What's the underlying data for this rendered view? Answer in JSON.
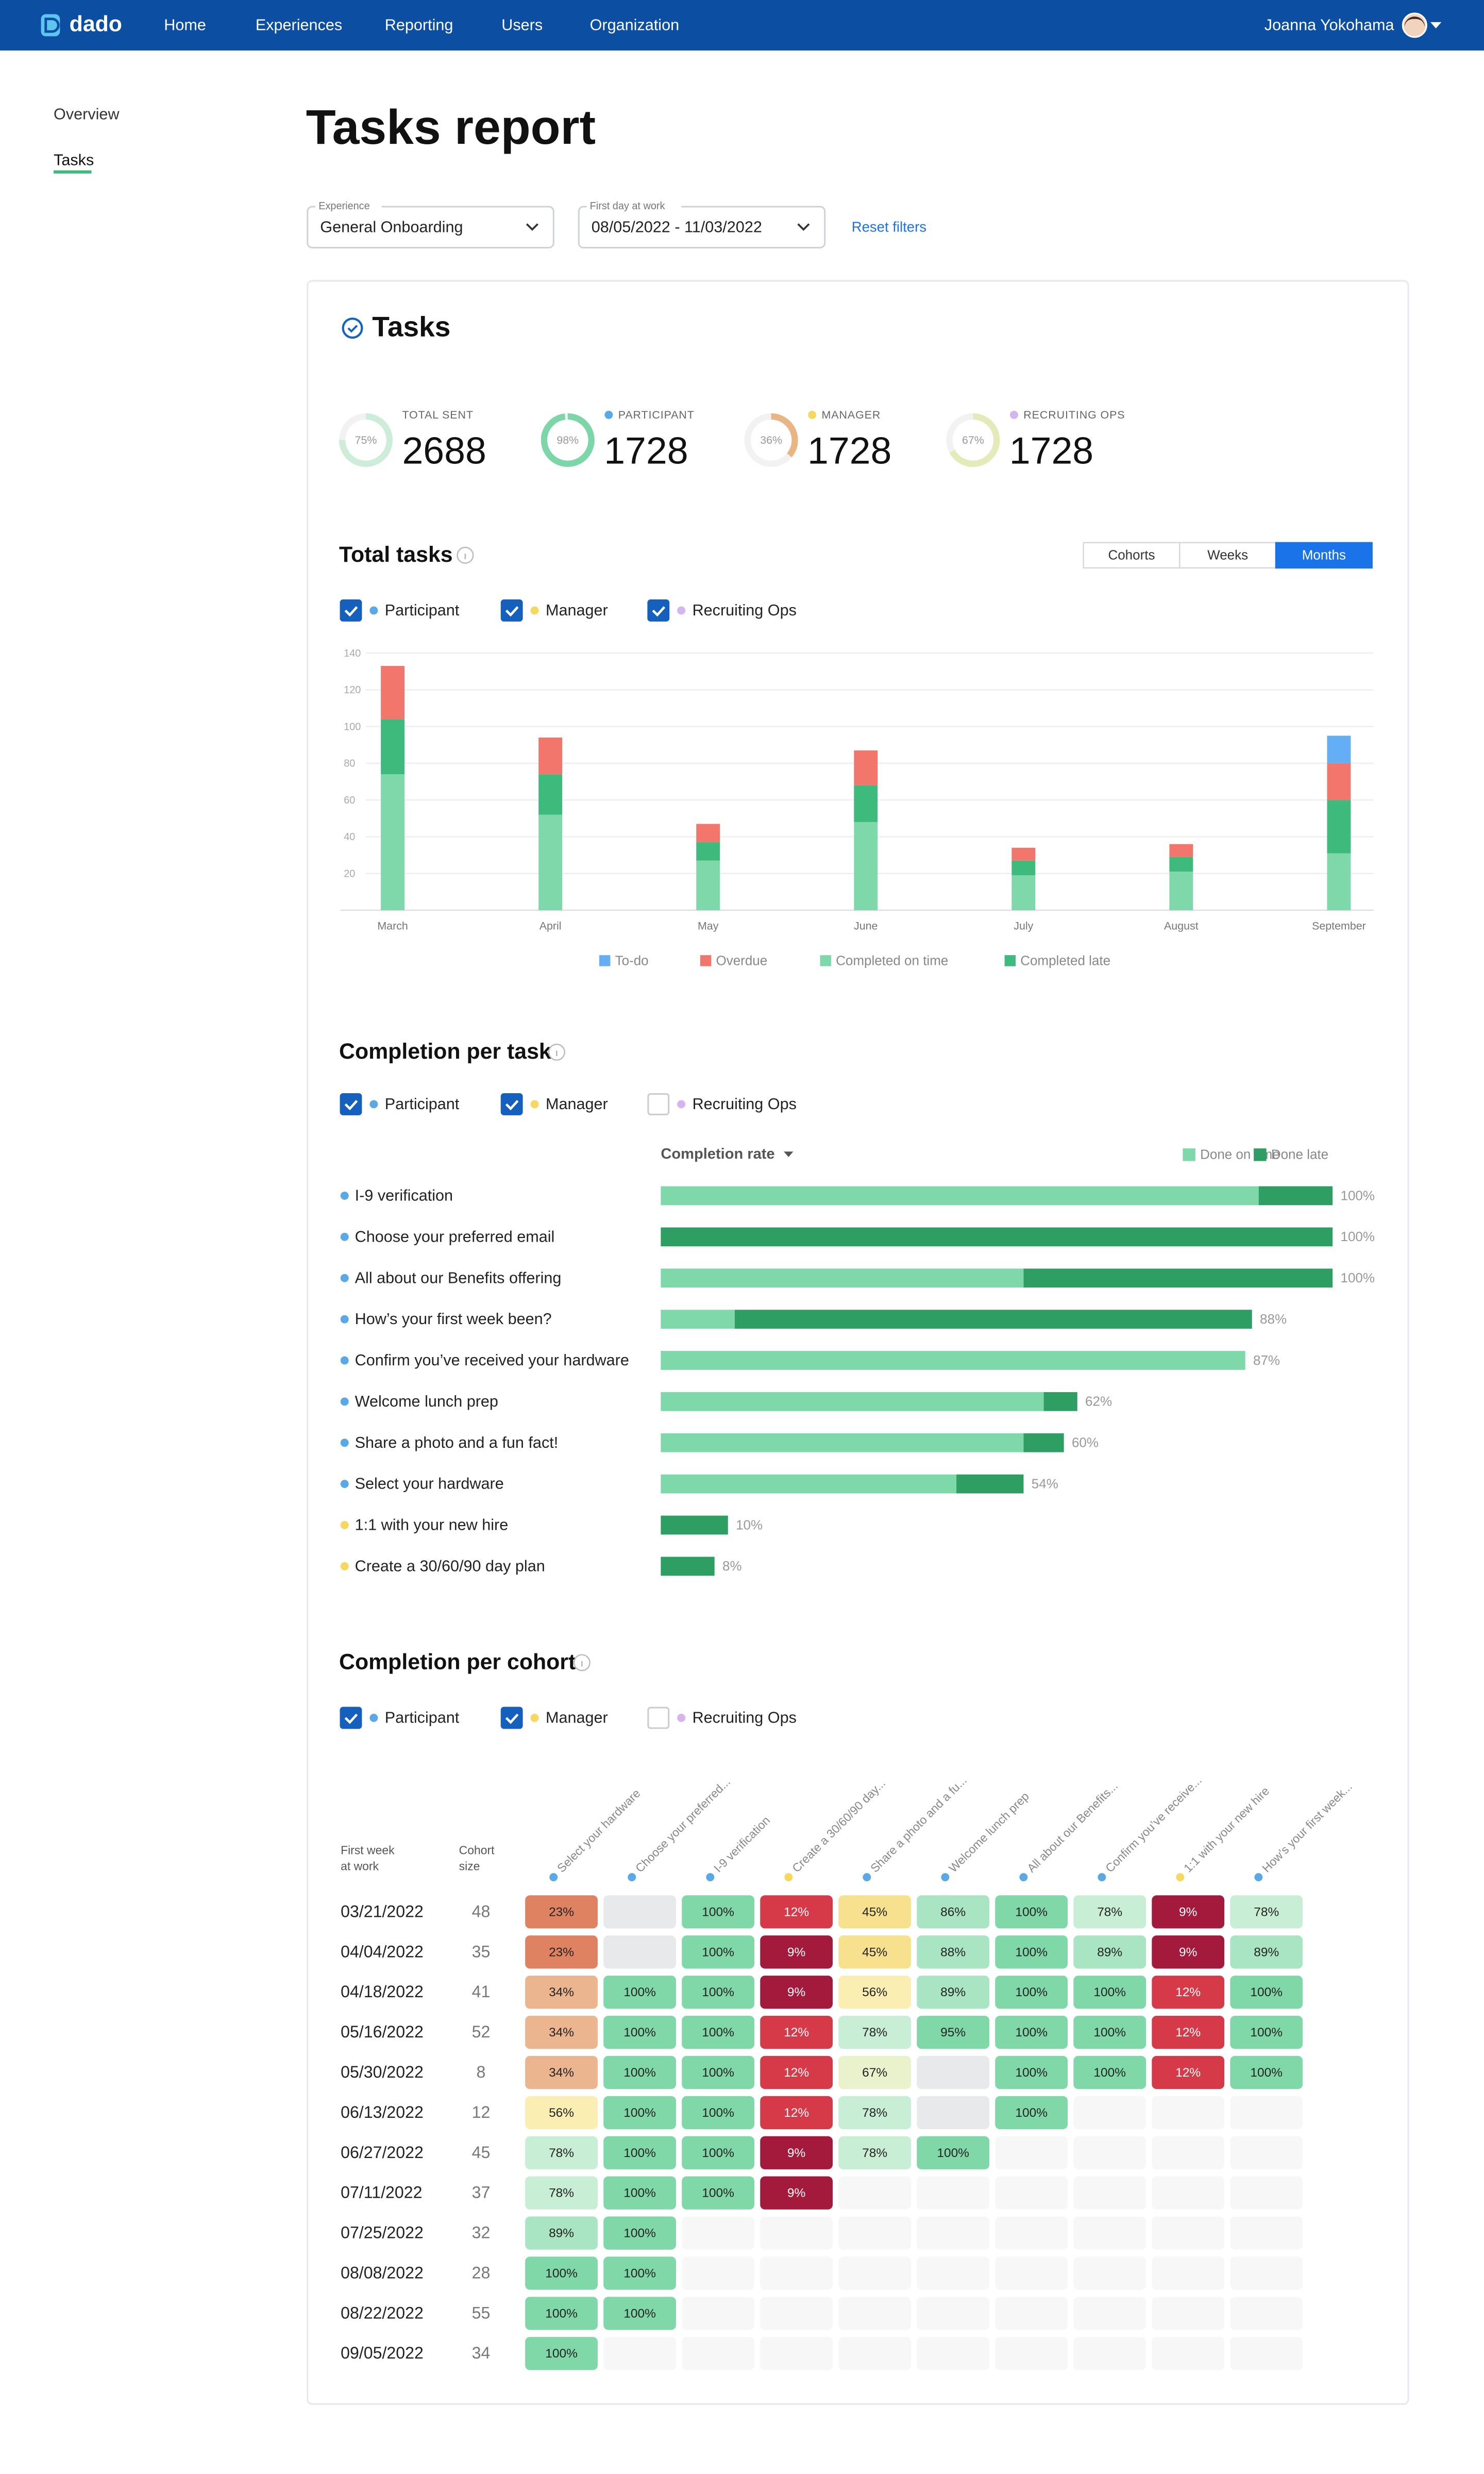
{
  "nav": {
    "logo": "dado",
    "items": [
      "Home",
      "Experiences",
      "Reporting",
      "Users",
      "Organization"
    ],
    "user": "Joanna Yokohama"
  },
  "sidebar": {
    "items": [
      "Overview",
      "Tasks"
    ],
    "active": 1
  },
  "header": {
    "title": "Tasks report"
  },
  "filters": [
    {
      "label": "Experience",
      "value": "General Onboarding"
    },
    {
      "label": "First day at work",
      "value": "08/05/2022 - 11/03/2022"
    }
  ],
  "reset": "Reset filters",
  "tasks_card": {
    "title": "Tasks",
    "kpis": [
      {
        "label": "TOTAL SENT",
        "value": 2688,
        "percent": 75,
        "percent_label": "75%",
        "ring_color": "#cdecd9",
        "dot": null
      },
      {
        "label": "PARTICIPANT",
        "value": 1728,
        "percent": 98,
        "percent_label": "98%",
        "ring_color": "#7dd6a8",
        "dot": "#5aa9e6"
      },
      {
        "label": "MANAGER",
        "value": 1728,
        "percent": 36,
        "percent_label": "36%",
        "ring_color": "#e8b585",
        "dot": "#f6d860"
      },
      {
        "label": "RECRUITING OPS",
        "value": 1728,
        "percent": 67,
        "percent_label": "67%",
        "ring_color": "#e4ebb8",
        "dot": "#d6b4f0"
      }
    ]
  },
  "total_tasks": {
    "title": "Total tasks",
    "views": [
      "Cohorts",
      "Weeks",
      "Months"
    ],
    "active_view": 2,
    "filters": [
      {
        "name": "Participant",
        "color": "#5aa9e6",
        "checked": true
      },
      {
        "name": "Manager",
        "color": "#f6d860",
        "checked": true
      },
      {
        "name": "Recruiting Ops",
        "color": "#d6b4f0",
        "checked": true
      }
    ],
    "chart": {
      "type": "bar",
      "stacked": true,
      "categories": [
        "March",
        "April",
        "May",
        "June",
        "July",
        "August",
        "September"
      ],
      "series": [
        {
          "name": "To-do",
          "color": "#64aef5",
          "values": [
            0,
            0,
            0,
            0,
            0,
            0,
            15
          ]
        },
        {
          "name": "Overdue",
          "color": "#f2766b",
          "values": [
            29,
            20,
            10,
            19,
            7,
            7,
            20
          ]
        },
        {
          "name": "Completed on time",
          "color": "#7fd8a9",
          "values": [
            74,
            52,
            27,
            48,
            19,
            21,
            31
          ]
        },
        {
          "name": "Completed late",
          "color": "#3dba7c",
          "values": [
            30,
            22,
            10,
            20,
            8,
            8,
            29
          ]
        }
      ],
      "ylim": [
        0,
        140
      ],
      "yticks": [
        20,
        40,
        60,
        80,
        100,
        120,
        140
      ],
      "grid": true
    }
  },
  "completion_per_task": {
    "title": "Completion per task",
    "filters": [
      {
        "name": "Participant",
        "color": "#5aa9e6",
        "checked": true
      },
      {
        "name": "Manager",
        "color": "#f6d860",
        "checked": true
      },
      {
        "name": "Recruiting Ops",
        "color": "#d6b4f0",
        "checked": false
      }
    ],
    "sort_label": "Completion rate",
    "legend": [
      {
        "name": "Done on time",
        "color": "#7fd8a9"
      },
      {
        "name": "Done late",
        "color": "#2e9e62"
      }
    ],
    "xlim": [
      0,
      100
    ],
    "tasks": [
      {
        "name": "I-9 verification",
        "dot": "#5aa9e6",
        "on_time": 89,
        "late": 11,
        "total_label": "100%"
      },
      {
        "name": "Choose your preferred email",
        "dot": "#5aa9e6",
        "on_time": 0,
        "late": 100,
        "total_label": "100%"
      },
      {
        "name": "All about our Benefits offering",
        "dot": "#5aa9e6",
        "on_time": 54,
        "late": 46,
        "total_label": "100%"
      },
      {
        "name": "How’s your first week been?",
        "dot": "#5aa9e6",
        "on_time": 11,
        "late": 77,
        "total_label": "88%"
      },
      {
        "name": "Confirm you’ve received your hardware",
        "dot": "#5aa9e6",
        "on_time": 87,
        "late": 0,
        "total_label": "87%"
      },
      {
        "name": "Welcome lunch prep",
        "dot": "#5aa9e6",
        "on_time": 57,
        "late": 5,
        "total_label": "62%"
      },
      {
        "name": "Share a photo and a fun fact!",
        "dot": "#5aa9e6",
        "on_time": 54,
        "late": 6,
        "total_label": "60%"
      },
      {
        "name": "Select your hardware",
        "dot": "#5aa9e6",
        "on_time": 44,
        "late": 10,
        "total_label": "54%"
      },
      {
        "name": "1:1 with your new hire",
        "dot": "#f6d860",
        "on_time": 0,
        "late": 10,
        "total_label": "10%"
      },
      {
        "name": "Create a 30/60/90 day plan",
        "dot": "#f6d860",
        "on_time": 0,
        "late": 8,
        "total_label": "8%"
      }
    ]
  },
  "completion_per_cohort": {
    "title": "Completion per cohort",
    "filters": [
      {
        "name": "Participant",
        "color": "#5aa9e6",
        "checked": true
      },
      {
        "name": "Manager",
        "color": "#f6d860",
        "checked": true
      },
      {
        "name": "Recruiting Ops",
        "color": "#d6b4f0",
        "checked": false
      }
    ],
    "row_header": [
      "First week",
      "at work"
    ],
    "size_header": [
      "Cohort",
      "size"
    ],
    "columns": [
      {
        "name": "Select your hardware",
        "dot": "#5aa9e6"
      },
      {
        "name": "Choose your preferred...",
        "dot": "#5aa9e6"
      },
      {
        "name": "I-9 verification",
        "dot": "#5aa9e6"
      },
      {
        "name": "Create a 30/60/90 day...",
        "dot": "#f6d860"
      },
      {
        "name": "Share a photo and a fu...",
        "dot": "#5aa9e6"
      },
      {
        "name": "Welcome lunch prep",
        "dot": "#5aa9e6"
      },
      {
        "name": "All about our Benefits...",
        "dot": "#5aa9e6"
      },
      {
        "name": "Confirm you’ve receive...",
        "dot": "#5aa9e6"
      },
      {
        "name": "1:1 with your new hire",
        "dot": "#f6d860"
      },
      {
        "name": "How’s your first week...",
        "dot": "#5aa9e6"
      }
    ],
    "rows": [
      {
        "week": "03/21/2022",
        "size": 48,
        "cells": [
          "23%",
          null,
          "100%",
          "12%",
          "45%",
          "86%",
          "100%",
          "78%",
          "9%",
          "78%"
        ]
      },
      {
        "week": "04/04/2022",
        "size": 35,
        "cells": [
          "23%",
          null,
          "100%",
          "9%",
          "45%",
          "88%",
          "100%",
          "89%",
          "9%",
          "89%"
        ]
      },
      {
        "week": "04/18/2022",
        "size": 41,
        "cells": [
          "34%",
          "100%",
          "100%",
          "9%",
          "56%",
          "89%",
          "100%",
          "100%",
          "12%",
          "100%"
        ]
      },
      {
        "week": "05/16/2022",
        "size": 52,
        "cells": [
          "34%",
          "100%",
          "100%",
          "12%",
          "78%",
          "95%",
          "100%",
          "100%",
          "12%",
          "100%"
        ]
      },
      {
        "week": "05/30/2022",
        "size": 8,
        "cells": [
          "34%",
          "100%",
          "100%",
          "12%",
          "67%",
          null,
          "100%",
          "100%",
          "12%",
          "100%"
        ]
      },
      {
        "week": "06/13/2022",
        "size": 12,
        "cells": [
          "56%",
          "100%",
          "100%",
          "12%",
          "78%",
          null,
          "100%"
        ]
      },
      {
        "week": "06/27/2022",
        "size": 45,
        "cells": [
          "78%",
          "100%",
          "100%",
          "9%",
          "78%",
          "100%"
        ]
      },
      {
        "week": "07/11/2022",
        "size": 37,
        "cells": [
          "78%",
          "100%",
          "100%",
          "9%"
        ]
      },
      {
        "week": "07/25/2022",
        "size": 32,
        "cells": [
          "89%",
          "100%"
        ]
      },
      {
        "week": "08/08/2022",
        "size": 28,
        "cells": [
          "100%",
          "100%"
        ]
      },
      {
        "week": "08/22/2022",
        "size": 55,
        "cells": [
          "100%",
          "100%"
        ]
      },
      {
        "week": "09/05/2022",
        "size": 34,
        "cells": [
          "100%"
        ]
      }
    ]
  }
}
